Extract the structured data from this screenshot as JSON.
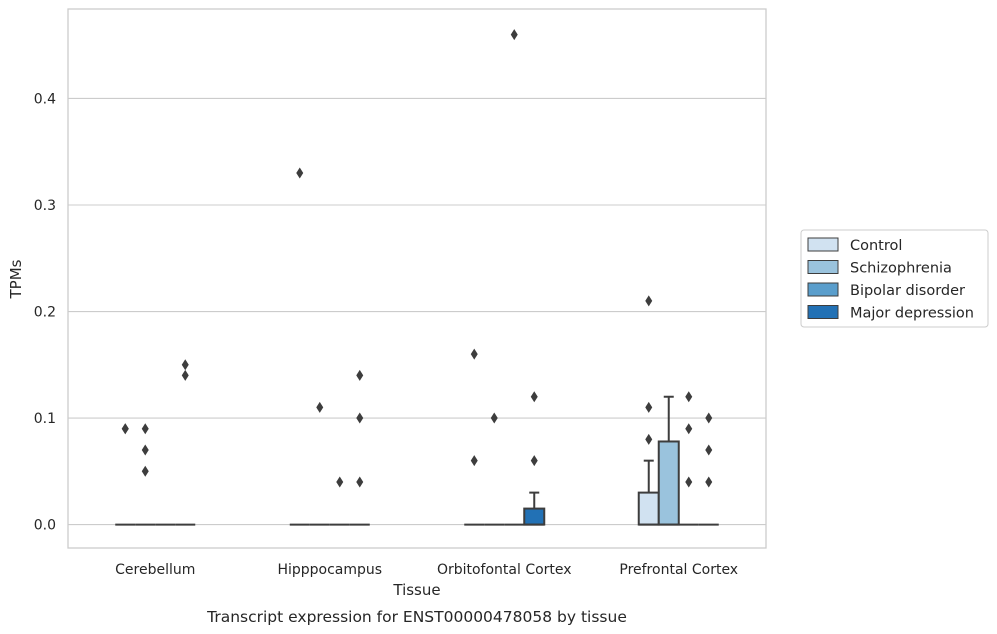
{
  "chart_data": {
    "type": "box",
    "xlabel": "Tissue",
    "ylabel": "TPMs",
    "caption": "Transcript expression for ENST00000478058 by tissue",
    "ylim": [
      -0.022,
      0.484
    ],
    "yticks": [
      "0.0",
      "0.1",
      "0.2",
      "0.3",
      "0.4"
    ],
    "grid": true,
    "legend_position": "right",
    "categories": [
      "Cerebellum",
      "Hipppocampus",
      "Orbitofontal Cortex",
      "Prefrontal Cortex"
    ],
    "series": [
      {
        "name": "Control",
        "color": "#d1e2f1",
        "boxes": [
          {
            "q1": 0,
            "median": 0,
            "q3": 0,
            "whisker_low": 0,
            "whisker_high": 0,
            "outliers": [
              0.09,
              0.09
            ]
          },
          {
            "q1": 0,
            "median": 0,
            "q3": 0,
            "whisker_low": 0,
            "whisker_high": 0,
            "outliers": [
              0.33
            ]
          },
          {
            "q1": 0,
            "median": 0,
            "q3": 0,
            "whisker_low": 0,
            "whisker_high": 0,
            "outliers": [
              0.16,
              0.06
            ]
          },
          {
            "q1": 0,
            "median": 0,
            "q3": 0.03,
            "whisker_low": 0,
            "whisker_high": 0.06,
            "outliers": [
              0.21,
              0.11,
              0.08
            ]
          }
        ]
      },
      {
        "name": "Schizophrenia",
        "color": "#9ac3dd",
        "boxes": [
          {
            "q1": 0,
            "median": 0,
            "q3": 0,
            "whisker_low": 0,
            "whisker_high": 0,
            "outliers": [
              0.09,
              0.07,
              0.05
            ]
          },
          {
            "q1": 0,
            "median": 0,
            "q3": 0,
            "whisker_low": 0,
            "whisker_high": 0,
            "outliers": [
              0.11
            ]
          },
          {
            "q1": 0,
            "median": 0,
            "q3": 0,
            "whisker_low": 0,
            "whisker_high": 0,
            "outliers": [
              0.1
            ]
          },
          {
            "q1": 0,
            "median": 0,
            "q3": 0.078,
            "whisker_low": 0,
            "whisker_high": 0.12,
            "outliers": []
          }
        ]
      },
      {
        "name": "Bipolar disorder",
        "color": "#5a9ecc",
        "boxes": [
          {
            "q1": 0,
            "median": 0,
            "q3": 0,
            "whisker_low": 0,
            "whisker_high": 0,
            "outliers": []
          },
          {
            "q1": 0,
            "median": 0,
            "q3": 0,
            "whisker_low": 0,
            "whisker_high": 0,
            "outliers": [
              0.04
            ]
          },
          {
            "q1": 0,
            "median": 0,
            "q3": 0,
            "whisker_low": 0,
            "whisker_high": 0,
            "outliers": [
              0.46
            ]
          },
          {
            "q1": 0,
            "median": 0,
            "q3": 0,
            "whisker_low": 0,
            "whisker_high": 0,
            "outliers": [
              0.12,
              0.09,
              0.04
            ]
          }
        ]
      },
      {
        "name": "Major depression",
        "color": "#2271b5",
        "boxes": [
          {
            "q1": 0,
            "median": 0,
            "q3": 0,
            "whisker_low": 0,
            "whisker_high": 0,
            "outliers": [
              0.15,
              0.14
            ]
          },
          {
            "q1": 0,
            "median": 0,
            "q3": 0,
            "whisker_low": 0,
            "whisker_high": 0,
            "outliers": [
              0.14,
              0.1,
              0.04
            ]
          },
          {
            "q1": 0,
            "median": 0,
            "q3": 0.015,
            "whisker_low": 0,
            "whisker_high": 0.03,
            "outliers": [
              0.12,
              0.06
            ]
          },
          {
            "q1": 0,
            "median": 0,
            "q3": 0,
            "whisker_low": 0,
            "whisker_high": 0,
            "outliers": [
              0.1,
              0.07,
              0.04
            ]
          }
        ]
      }
    ]
  }
}
